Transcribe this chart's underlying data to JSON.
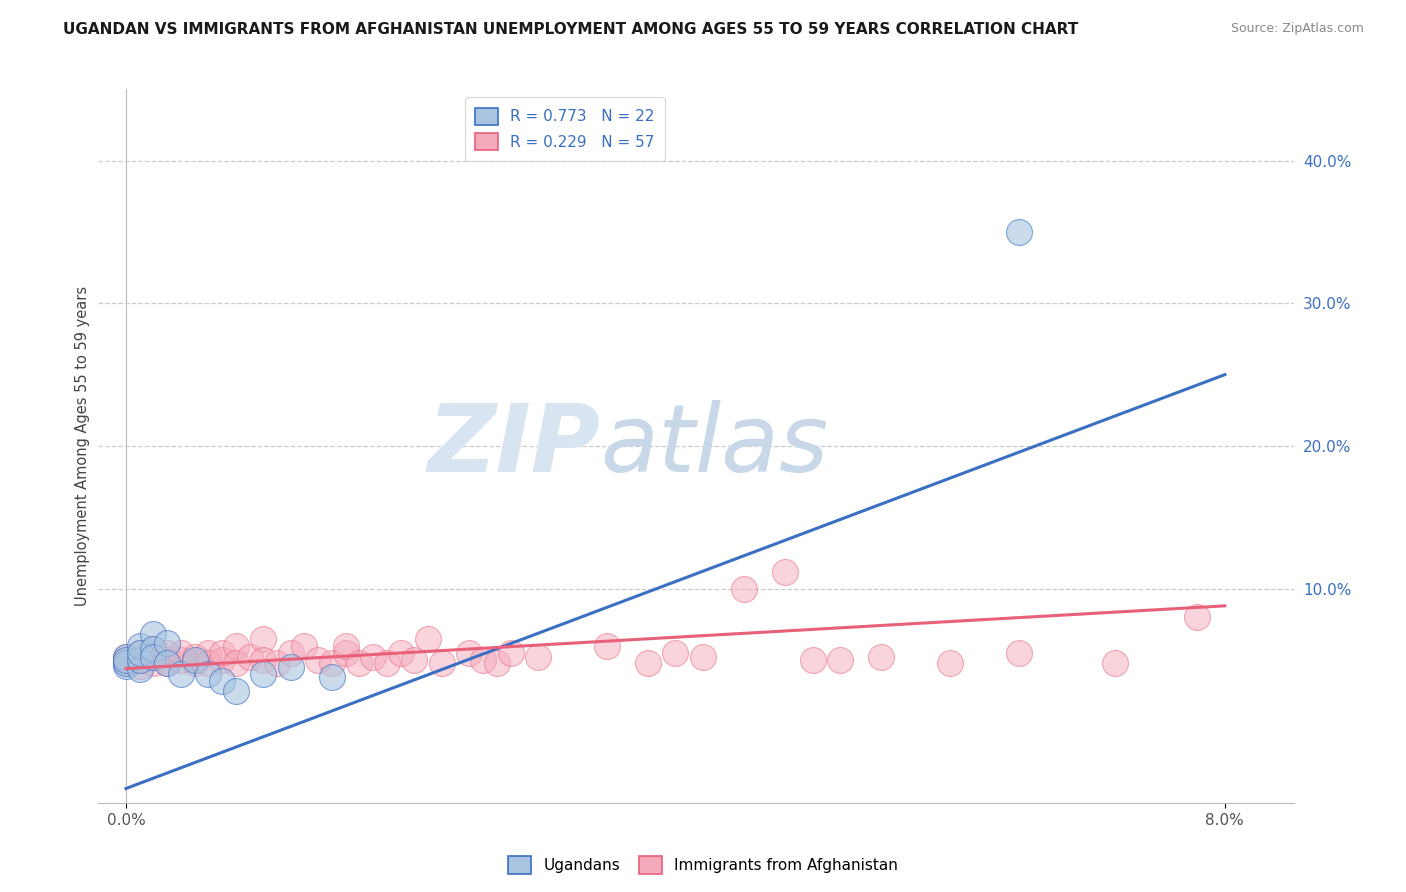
{
  "title": "UGANDAN VS IMMIGRANTS FROM AFGHANISTAN UNEMPLOYMENT AMONG AGES 55 TO 59 YEARS CORRELATION CHART",
  "source": "Source: ZipAtlas.com",
  "ylabel": "Unemployment Among Ages 55 to 59 years",
  "ylabel_ticks": [
    "10.0%",
    "20.0%",
    "30.0%",
    "40.0%"
  ],
  "ylabel_tick_vals": [
    0.1,
    0.2,
    0.3,
    0.4
  ],
  "legend1_r": "0.773",
  "legend1_n": "22",
  "legend2_r": "0.229",
  "legend2_n": "57",
  "blue_color": "#A8C4E0",
  "pink_color": "#F4AABB",
  "blue_line_color": "#3A6FC4",
  "pink_line_color": "#E8607A",
  "blue_scatter": [
    [
      0.0,
      0.046
    ],
    [
      0.0,
      0.052
    ],
    [
      0.0,
      0.048
    ],
    [
      0.0,
      0.05
    ],
    [
      0.001,
      0.044
    ],
    [
      0.001,
      0.05
    ],
    [
      0.001,
      0.06
    ],
    [
      0.001,
      0.055
    ],
    [
      0.002,
      0.068
    ],
    [
      0.002,
      0.058
    ],
    [
      0.002,
      0.052
    ],
    [
      0.003,
      0.062
    ],
    [
      0.003,
      0.048
    ],
    [
      0.004,
      0.04
    ],
    [
      0.005,
      0.05
    ],
    [
      0.006,
      0.04
    ],
    [
      0.007,
      0.035
    ],
    [
      0.008,
      0.028
    ],
    [
      0.01,
      0.04
    ],
    [
      0.012,
      0.045
    ],
    [
      0.015,
      0.038
    ],
    [
      0.065,
      0.35
    ]
  ],
  "pink_scatter": [
    [
      0.0,
      0.048
    ],
    [
      0.0,
      0.052
    ],
    [
      0.0,
      0.05
    ],
    [
      0.001,
      0.046
    ],
    [
      0.001,
      0.05
    ],
    [
      0.001,
      0.055
    ],
    [
      0.002,
      0.048
    ],
    [
      0.002,
      0.052
    ],
    [
      0.002,
      0.058
    ],
    [
      0.003,
      0.05
    ],
    [
      0.003,
      0.055
    ],
    [
      0.003,
      0.048
    ],
    [
      0.004,
      0.05
    ],
    [
      0.004,
      0.055
    ],
    [
      0.005,
      0.048
    ],
    [
      0.005,
      0.052
    ],
    [
      0.006,
      0.055
    ],
    [
      0.006,
      0.048
    ],
    [
      0.007,
      0.05
    ],
    [
      0.007,
      0.055
    ],
    [
      0.008,
      0.06
    ],
    [
      0.008,
      0.048
    ],
    [
      0.009,
      0.052
    ],
    [
      0.01,
      0.065
    ],
    [
      0.01,
      0.05
    ],
    [
      0.011,
      0.048
    ],
    [
      0.012,
      0.055
    ],
    [
      0.013,
      0.06
    ],
    [
      0.014,
      0.05
    ],
    [
      0.015,
      0.048
    ],
    [
      0.016,
      0.055
    ],
    [
      0.016,
      0.06
    ],
    [
      0.017,
      0.048
    ],
    [
      0.018,
      0.052
    ],
    [
      0.019,
      0.048
    ],
    [
      0.02,
      0.055
    ],
    [
      0.021,
      0.05
    ],
    [
      0.022,
      0.065
    ],
    [
      0.023,
      0.048
    ],
    [
      0.025,
      0.055
    ],
    [
      0.026,
      0.05
    ],
    [
      0.027,
      0.048
    ],
    [
      0.028,
      0.055
    ],
    [
      0.03,
      0.052
    ],
    [
      0.035,
      0.06
    ],
    [
      0.038,
      0.048
    ],
    [
      0.04,
      0.055
    ],
    [
      0.042,
      0.052
    ],
    [
      0.045,
      0.1
    ],
    [
      0.048,
      0.112
    ],
    [
      0.05,
      0.05
    ],
    [
      0.052,
      0.05
    ],
    [
      0.055,
      0.052
    ],
    [
      0.06,
      0.048
    ],
    [
      0.065,
      0.055
    ],
    [
      0.072,
      0.048
    ],
    [
      0.078,
      0.08
    ]
  ],
  "blue_line": [
    [
      0.0,
      -0.04
    ],
    [
      0.08,
      0.25
    ]
  ],
  "pink_line": [
    [
      0.0,
      0.044
    ],
    [
      0.08,
      0.088
    ]
  ],
  "xlim": [
    -0.002,
    0.085
  ],
  "ylim": [
    -0.05,
    0.45
  ],
  "watermark_zip": "ZIP",
  "watermark_atlas": "atlas",
  "background_color": "#FFFFFF"
}
